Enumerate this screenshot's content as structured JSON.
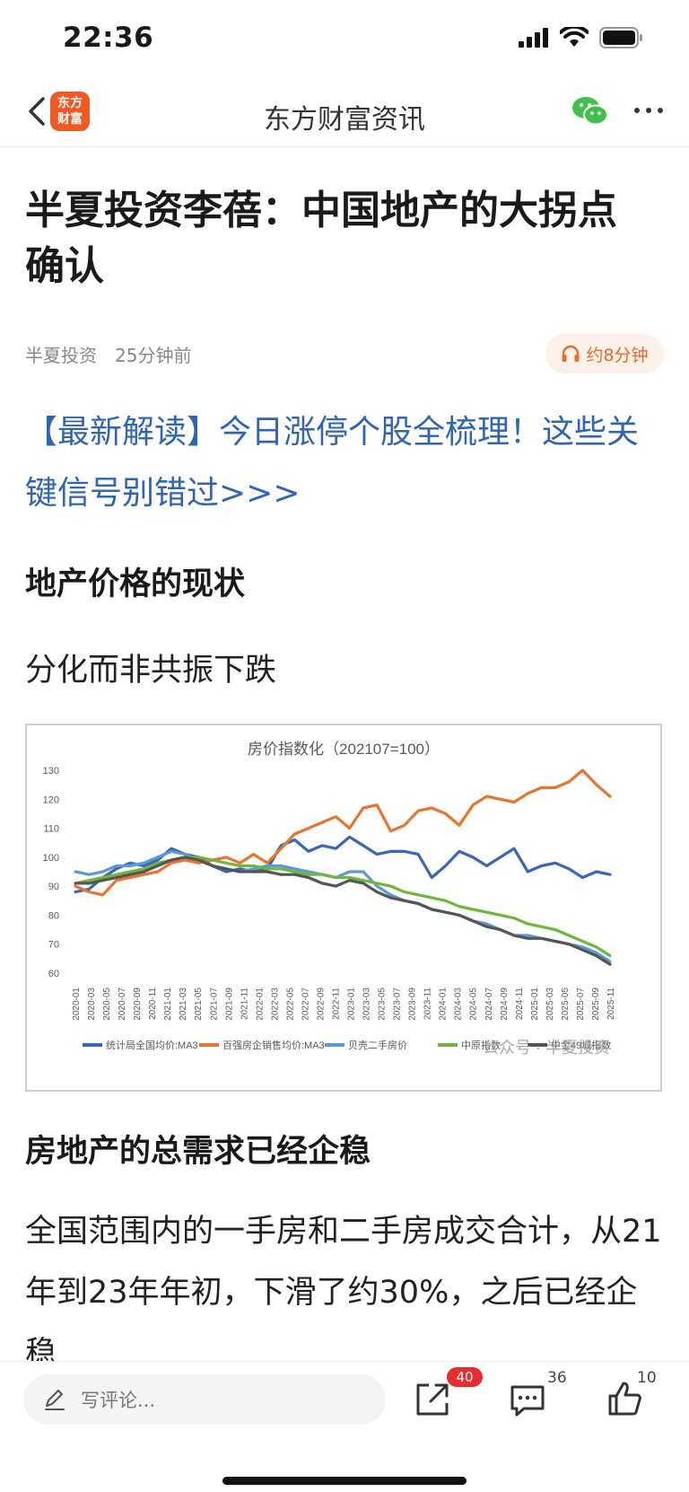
{
  "status_bar": {
    "time": "22:36"
  },
  "nav": {
    "title": "东方财富资讯",
    "logo_line1": "东方",
    "logo_line2": "财富"
  },
  "article": {
    "title": "半夏投资李蓓：中国地产的大拐点确认",
    "source": "半夏投资",
    "time_ago": "25分钟前",
    "audio_label": "约8分钟",
    "promo_link": "【最新解读】今日涨停个股全梳理！这些关键信号别错过>>>",
    "section1": "地产价格的现状",
    "subheading": "分化而非共振下跌",
    "section2": "房地产的总需求已经企稳",
    "body": "全国范围内的一手房和二手房成交合计，从21年到23年年初，下滑了约30%，之后已经企稳"
  },
  "chart_data": {
    "type": "line",
    "title": "房价指数化（202107=100）",
    "ylim": [
      60,
      130
    ],
    "yticks": [
      60,
      70,
      80,
      90,
      100,
      110,
      120,
      130
    ],
    "grid": false,
    "legend_position": "bottom",
    "x_tick_labels": [
      "2020-01",
      "2020-03",
      "2020-05",
      "2020-07",
      "2020-09",
      "2020-11",
      "2021-01",
      "2021-03",
      "2021-05",
      "2021-07",
      "2021-09",
      "2021-11",
      "2022-01",
      "2022-03",
      "2022-05",
      "2022-07",
      "2022-09",
      "2022-11",
      "2023-01",
      "2023-03",
      "2023-05",
      "2023-07",
      "2023-09",
      "2023-11",
      "2024-01",
      "2024-03",
      "2024-05",
      "2024-07",
      "2024-09",
      "2024-11",
      "2025-01",
      "2025-03",
      "2025-05",
      "2025-07",
      "2025-09",
      "2025-11"
    ],
    "series": [
      {
        "name": "统计局全国均价:MA3",
        "color": "#3a66b8",
        "values": [
          88,
          89,
          93,
          96,
          98,
          97,
          99,
          103,
          101,
          100,
          97,
          95,
          96,
          95,
          96,
          104,
          106,
          102,
          104,
          103,
          107,
          104,
          101,
          102,
          102,
          101,
          93,
          97,
          102,
          100,
          97,
          100,
          103,
          95,
          97,
          98,
          96,
          93,
          95,
          94
        ]
      },
      {
        "name": "百强房企销售均价:MA3",
        "color": "#e8752b",
        "values": [
          90,
          88,
          87,
          92,
          93,
          94,
          95,
          98,
          99,
          98,
          99,
          100,
          98,
          101,
          98,
          103,
          108,
          110,
          112,
          114,
          110,
          117,
          118,
          109,
          111,
          116,
          117,
          115,
          111,
          118,
          121,
          120,
          119,
          122,
          124,
          124,
          126,
          130,
          125,
          121
        ]
      },
      {
        "name": "贝壳二手房价",
        "color": "#5b9bd5",
        "values": [
          95,
          94,
          95,
          97,
          97,
          98,
          100,
          102,
          101,
          99,
          97,
          96,
          95,
          96,
          97,
          97,
          96,
          95,
          94,
          93,
          95,
          95,
          90,
          87,
          85,
          84,
          82,
          81,
          80,
          78,
          77,
          75,
          73,
          73,
          72,
          71,
          70,
          69,
          67,
          64
        ]
      },
      {
        "name": "中原指数",
        "color": "#6fb63a",
        "values": [
          91,
          92,
          93,
          94,
          95,
          96,
          98,
          99,
          100,
          100,
          99,
          98,
          97,
          97,
          96,
          96,
          95,
          94,
          94,
          93,
          93,
          92,
          91,
          90,
          88,
          87,
          86,
          85,
          83,
          82,
          81,
          80,
          79,
          77,
          76,
          75,
          73,
          71,
          69,
          66
        ]
      },
      {
        "name": "中金49城指数",
        "color": "#555555",
        "values": [
          91,
          91,
          92,
          93,
          94,
          95,
          97,
          99,
          100,
          99,
          97,
          96,
          95,
          95,
          95,
          94,
          94,
          93,
          91,
          90,
          92,
          91,
          88,
          86,
          85,
          84,
          82,
          81,
          80,
          78,
          76,
          75,
          73,
          72,
          72,
          71,
          70,
          68,
          66,
          63
        ]
      }
    ]
  },
  "chart_watermark": "公众号 · 半夏投资",
  "bottom_bar": {
    "comment_placeholder": "写评论...",
    "share_count": "40",
    "comment_count": "36",
    "like_count": "10"
  }
}
